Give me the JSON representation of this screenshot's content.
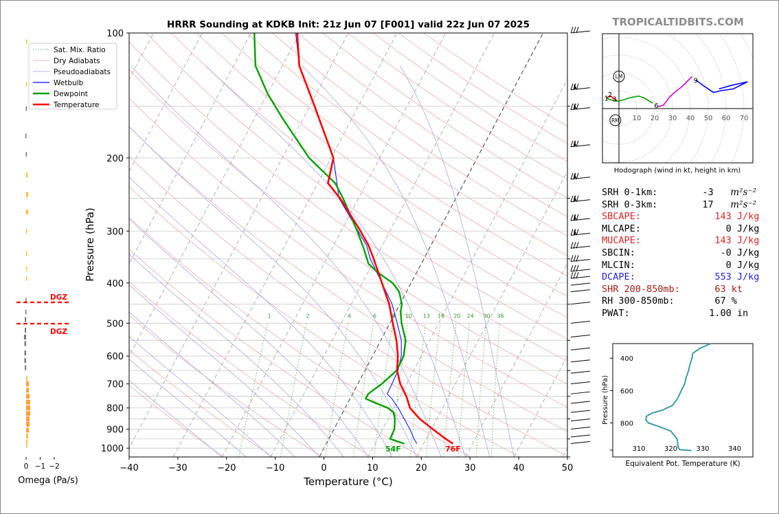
{
  "title": "HRRR Sounding at KDKB Init: 21z Jun 07 [F001] valid 22z Jun 07 2025",
  "watermark": "TROPICALTIDBITS.COM",
  "chart_data": [
    {
      "type": "line",
      "name": "skew-t",
      "xlabel": "Temperature (°C)",
      "ylabel": "Pressure (hPa)",
      "xlim": [
        -40,
        50
      ],
      "ylim": [
        1050,
        100
      ],
      "y_scale": "log",
      "x_ticks": [
        -40,
        -30,
        -20,
        -10,
        0,
        10,
        20,
        30,
        40,
        50
      ],
      "y_ticks": [
        100,
        200,
        300,
        400,
        500,
        600,
        700,
        800,
        900,
        1000
      ],
      "legend": [
        "Sat. Mix. Ratio",
        "Dry Adiabats",
        "Pseudoadiabats",
        "Wetbulb",
        "Dewpoint",
        "Temperature"
      ],
      "legend_position": "top-left",
      "mixing_ratio_labels": [
        "1",
        "2",
        "4",
        "6",
        "8",
        "10",
        "13",
        "16",
        "20",
        "24",
        "30",
        "36"
      ],
      "surface_temp_label": "76F",
      "surface_dew_label": "54F",
      "series": [
        {
          "name": "Temperature",
          "color": "#ff0000",
          "p": [
            975,
            950,
            900,
            850,
            800,
            750,
            700,
            650,
            600,
            550,
            500,
            450,
            400,
            350,
            325,
            300,
            250,
            230,
            200,
            150,
            120,
            100
          ],
          "t": [
            26.0,
            24.0,
            20.3,
            16.5,
            13.3,
            11.3,
            8.7,
            6.6,
            5.2,
            3.2,
            0.6,
            -2.2,
            -6.0,
            -10.3,
            -12.8,
            -16.0,
            -23.8,
            -27.9,
            -29.5,
            -39.0,
            -46.5,
            -50.5
          ]
        },
        {
          "name": "Dewpoint",
          "color": "#00a000",
          "p": [
            975,
            950,
            900,
            850,
            820,
            800,
            780,
            760,
            740,
            700,
            650,
            600,
            550,
            500,
            470,
            450,
            420,
            400,
            380,
            360,
            330,
            300,
            250,
            230,
            200,
            160,
            140,
            120,
            100
          ],
          "t": [
            16.0,
            12.6,
            12.4,
            11.4,
            10.4,
            8.8,
            5.9,
            3.2,
            3.2,
            4.9,
            6.5,
            6.4,
            5.1,
            2.4,
            1.0,
            0.4,
            -1.5,
            -3.8,
            -7.5,
            -10.8,
            -13.5,
            -16.7,
            -23.2,
            -26.4,
            -34.5,
            -44.4,
            -50.0,
            -55.5,
            -59.3
          ]
        },
        {
          "name": "Wetbulb",
          "color": "#0000ff",
          "p": [
            975,
            950,
            900,
            850,
            800,
            760,
            740,
            700,
            650,
            600,
            550,
            500,
            450,
            400,
            350,
            325,
            300,
            250,
            200,
            150,
            120,
            100
          ],
          "t": [
            18.6,
            17.5,
            15.6,
            13.3,
            10.9,
            8.6,
            7.1,
            7.0,
            6.8,
            5.9,
            4.2,
            1.5,
            -1.6,
            -6.0,
            -11.0,
            -13.2,
            -16.5,
            -24.0,
            -29.5,
            -39.0,
            -46.5,
            -50.8
          ]
        }
      ]
    },
    {
      "type": "line",
      "name": "hodograph",
      "xlabel": "Hodograph (wind in kt, height in km)",
      "x_ticks": [
        10,
        20,
        30,
        40,
        50,
        60,
        70
      ],
      "point_labels": [
        "1",
        "2",
        "3",
        "6",
        "9"
      ],
      "storm_markers": [
        "LM",
        "RM"
      ],
      "segments": [
        {
          "color": "#00a000",
          "u": [
            -7,
            -5,
            -1,
            3,
            6,
            11,
            14,
            19
          ],
          "v": [
            6,
            5,
            4,
            5,
            6,
            7,
            6,
            3
          ]
        },
        {
          "color": "#ff0000",
          "u": [
            -7,
            -4.5,
            -3,
            -1
          ],
          "v": [
            6,
            7,
            5.5,
            4.5
          ]
        },
        {
          "color": "#cc00cc",
          "u": [
            22,
            25,
            28,
            31,
            35,
            39,
            41
          ],
          "v": [
            1,
            2,
            6,
            9,
            12,
            16,
            18
          ]
        },
        {
          "color": "#0000ff",
          "u": [
            43,
            47,
            50,
            53,
            57,
            64,
            72,
            63,
            56
          ],
          "v": [
            16,
            13,
            11,
            9,
            10,
            11,
            15,
            13,
            11
          ]
        }
      ]
    },
    {
      "type": "line",
      "name": "theta-e",
      "xlabel": "Equivalent Pot. Temperature (K)",
      "ylabel": "Pressure (hPa)",
      "x_ticks": [
        310,
        320,
        330,
        340
      ],
      "y_ticks": [
        400,
        600,
        800
      ],
      "color": "#3a9aa8",
      "p": [
        970,
        965,
        950,
        900,
        850,
        820,
        800,
        780,
        760,
        740,
        720,
        690,
        650,
        600,
        560,
        520,
        480,
        440,
        400,
        370,
        340,
        310
      ],
      "theta_e": [
        326.5,
        322.8,
        322.3,
        322.0,
        320.0,
        316.0,
        313.0,
        312.2,
        312.3,
        314.0,
        317.5,
        320.6,
        322.1,
        323.3,
        324.3,
        324.8,
        325.5,
        326.0,
        326.6,
        326.9,
        329.0,
        332.5
      ]
    },
    {
      "type": "bar",
      "name": "omega",
      "xlabel": "Omega (Pa/s)",
      "x_ticks": [
        "0",
        "−1",
        "−2"
      ],
      "dgz_label": "DGZ",
      "p": [
        105,
        133,
        152,
        177,
        196,
        220,
        245,
        270,
        300,
        340,
        370,
        390,
        440,
        470,
        490,
        520,
        540,
        560,
        590,
        615,
        640,
        680,
        700,
        725,
        750,
        775,
        800,
        825,
        850,
        875,
        905,
        935,
        965,
        985
      ],
      "omega": [
        -0.05,
        -0.05,
        0.02,
        0.05,
        0.02,
        -0.1,
        -0.15,
        -0.15,
        -0.07,
        -0.05,
        -0.05,
        -0.05,
        0.05,
        0.05,
        0.1,
        0.1,
        0.15,
        0.12,
        0.12,
        0.12,
        0.1,
        -0.1,
        -0.2,
        -0.2,
        -0.25,
        -0.3,
        -0.3,
        -0.3,
        -0.25,
        -0.25,
        -0.2,
        -0.15,
        -0.1,
        -0.07
      ]
    }
  ],
  "parameters": [
    {
      "label": "SRH 0-1km:",
      "value": "    -3",
      "unit_html": " m²s⁻²",
      "color": "#000000"
    },
    {
      "label": "SRH 0-3km:",
      "value": "    17",
      "unit_html": " m²s⁻²",
      "color": "#000000"
    },
    {
      "label": "SBCAPE:",
      "value": "   143 J/kg",
      "unit_html": "",
      "color": "#d62728"
    },
    {
      "label": "MLCAPE:",
      "value": "     0 J/kg",
      "unit_html": "",
      "color": "#000000"
    },
    {
      "label": "MUCAPE:",
      "value": "   143 J/kg",
      "unit_html": "",
      "color": "#d62728"
    },
    {
      "label": "SBCIN:",
      "value": "    -0 J/kg",
      "unit_html": "",
      "color": "#000000"
    },
    {
      "label": "MLCIN:",
      "value": "     0 J/kg",
      "unit_html": "",
      "color": "#000000"
    },
    {
      "label": "DCAPE:",
      "value": "   553 J/kg",
      "unit_html": "",
      "color": "#1f1fd6"
    },
    {
      "label": "SHR 200-850mb:",
      "value": "   63 kt",
      "unit_html": "",
      "color": "#a11d1d"
    },
    {
      "label": "RH 300-850mb:",
      "value": "   67 %",
      "unit_html": "",
      "color": "#000000"
    },
    {
      "label": "PWAT:",
      "value": "  1.00 in",
      "unit_html": "",
      "color": "#000000"
    }
  ]
}
